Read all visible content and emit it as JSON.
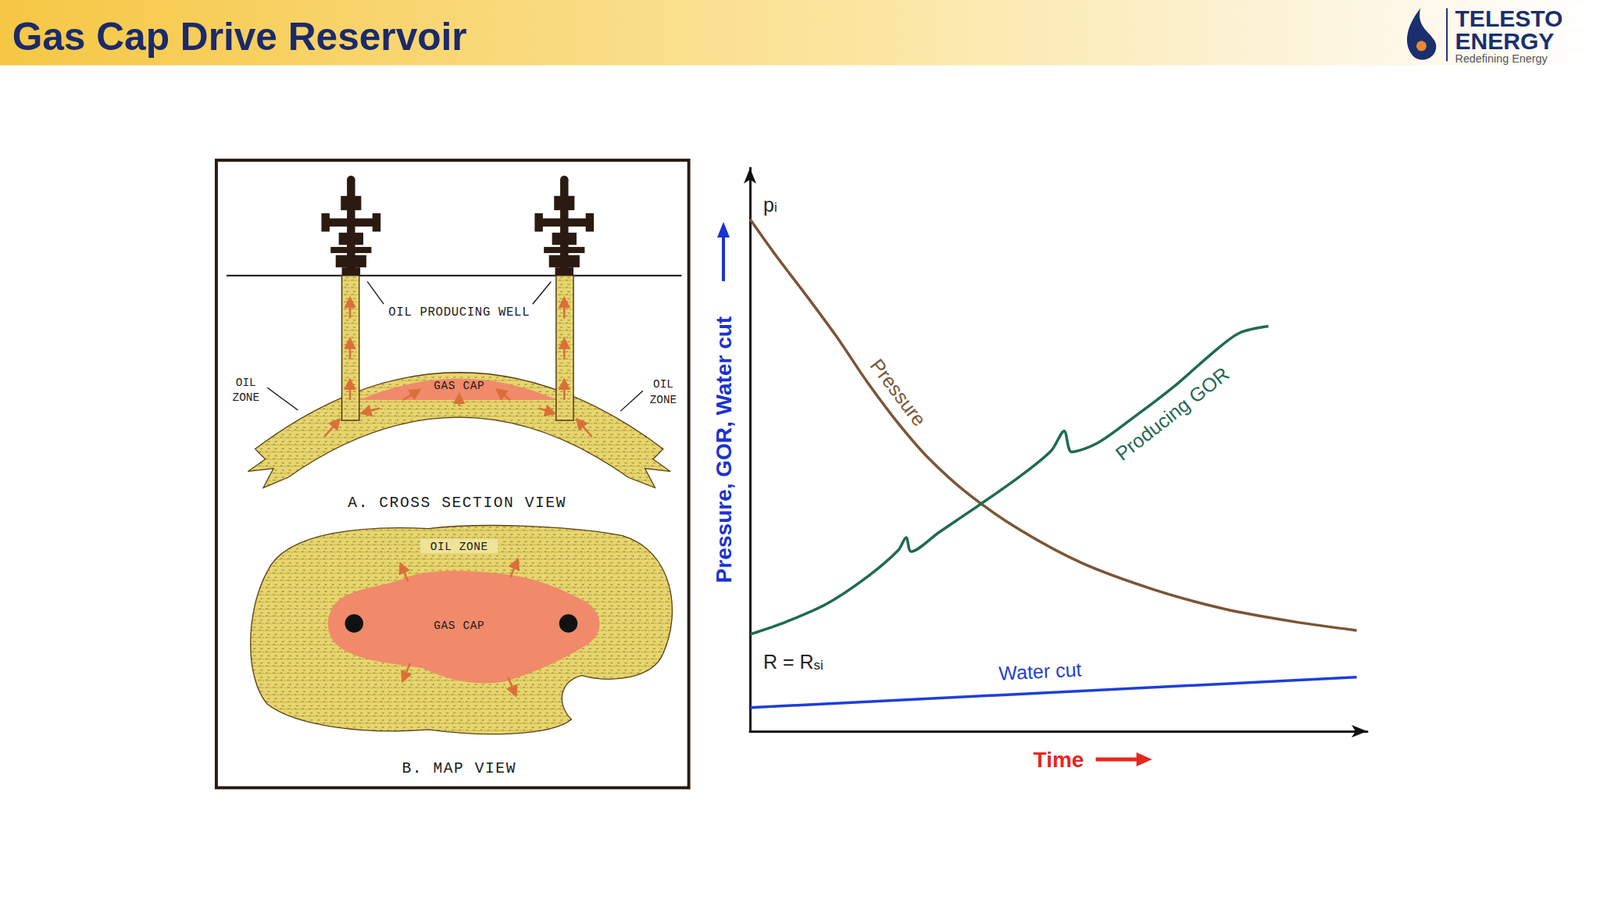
{
  "header": {
    "title": "Gas Cap Drive Reservoir",
    "logo": {
      "name": [
        "TELESTO",
        "ENERGY"
      ],
      "tagline": "Redefining Energy"
    }
  },
  "diagram": {
    "cross_section": {
      "well_label": "OIL PRODUCING WELL",
      "gas_cap": "GAS CAP",
      "oil_zone_left": [
        "OIL",
        "ZONE"
      ],
      "oil_zone_right": [
        "OIL",
        "ZONE"
      ],
      "caption": "A. CROSS SECTION VIEW"
    },
    "map_view": {
      "oil_zone": "OIL ZONE",
      "gas_cap": "GAS CAP",
      "caption": "B. MAP VIEW"
    }
  },
  "chart_data": {
    "type": "line",
    "x_label": "Time",
    "y_label": "Pressure, GOR, Water cut",
    "xlim": [
      0,
      100
    ],
    "ylim": [
      0,
      100
    ],
    "tick_labels": false,
    "grid": false,
    "annotations": [
      {
        "text": "p",
        "sub": "i"
      },
      {
        "text": "R = R",
        "sub": "si"
      }
    ],
    "series": [
      {
        "name": "Pressure",
        "color": "#7b5535",
        "x": [
          0,
          4.1,
          9.1,
          14,
          19,
          24,
          29,
          35.5,
          43.8,
          53.7,
          65.3,
          76.9,
          88.4,
          98.3
        ],
        "values": [
          90.9,
          84.6,
          77.4,
          70.1,
          62,
          54.7,
          48.4,
          42,
          35.7,
          29.9,
          25.2,
          21.7,
          19.4,
          17.9
        ]
      },
      {
        "name": "Producing GOR",
        "color": "#1f6b50",
        "x": [
          0,
          5.8,
          12.4,
          19,
          24,
          25.3,
          26.1,
          30.6,
          37.2,
          43.8,
          48.8,
          50.9,
          52.1,
          56.2,
          62,
          68.6,
          75.2,
          79.3,
          84
        ],
        "values": [
          17.2,
          19.4,
          22.6,
          27.4,
          32.1,
          34.4,
          31.9,
          35.3,
          40.2,
          45.3,
          49.8,
          53.3,
          49.6,
          51.1,
          55.6,
          61.1,
          67.4,
          70.7,
          71.9
        ]
      },
      {
        "name": "Water cut",
        "color": "#1f3fd6",
        "x": [
          0,
          98.3
        ],
        "values": [
          4.2,
          9.6
        ]
      }
    ]
  }
}
